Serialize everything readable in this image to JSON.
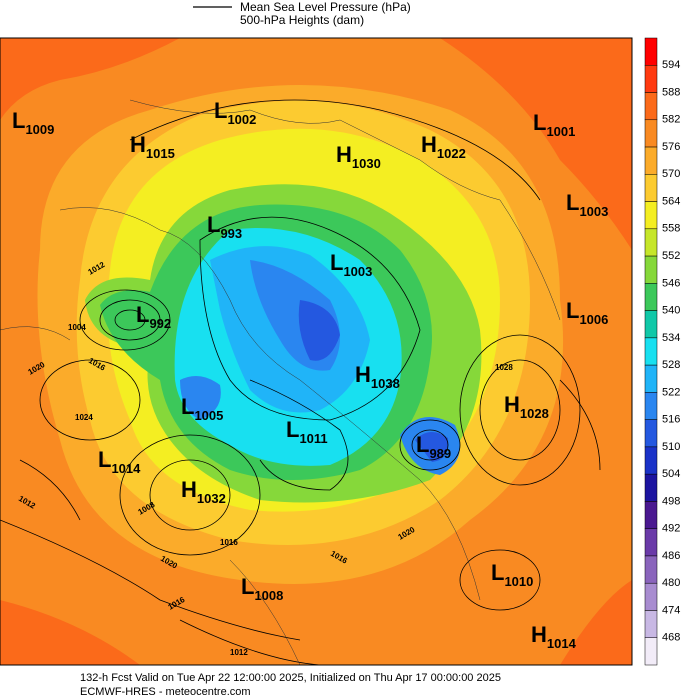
{
  "legend": {
    "lines": [
      "Mean Sea Level Pressure (hPa)",
      "500-hPa Heights (dam)"
    ]
  },
  "colorbar": {
    "labels": [
      594,
      588,
      582,
      576,
      570,
      564,
      558,
      552,
      546,
      540,
      534,
      528,
      522,
      516,
      510,
      504,
      498,
      492,
      486,
      480,
      474,
      468
    ],
    "colors": [
      "#ff0000",
      "#ff3a10",
      "#fb6a1a",
      "#f98a22",
      "#fbab2a",
      "#fccb30",
      "#f4ee22",
      "#c6e62a",
      "#86d83a",
      "#3cc85a",
      "#10c8a8",
      "#18e0f0",
      "#20b4f8",
      "#2a86f0",
      "#2458e0",
      "#1a32c8",
      "#1c14a0",
      "#4a1890",
      "#6a3aa8",
      "#8a64bc",
      "#a88cd0",
      "#c8b8e4",
      "#f2ecf8"
    ]
  },
  "centers": [
    {
      "type": "L",
      "value": "1009"
    },
    {
      "type": "L",
      "value": "1002"
    },
    {
      "type": "H",
      "value": "1015"
    },
    {
      "type": "H",
      "value": "1030"
    },
    {
      "type": "H",
      "value": "1022"
    },
    {
      "type": "L",
      "value": "1001"
    },
    {
      "type": "L",
      "value": "1003"
    },
    {
      "type": "L",
      "value": "993"
    },
    {
      "type": "L",
      "value": "1003"
    },
    {
      "type": "L",
      "value": "992"
    },
    {
      "type": "L",
      "value": "1006"
    },
    {
      "type": "H",
      "value": "1038"
    },
    {
      "type": "H",
      "value": "1028"
    },
    {
      "type": "L",
      "value": "1005"
    },
    {
      "type": "L",
      "value": "1011"
    },
    {
      "type": "L",
      "value": "989"
    },
    {
      "type": "L",
      "value": "1014"
    },
    {
      "type": "H",
      "value": "1032"
    },
    {
      "type": "L",
      "value": "1010"
    },
    {
      "type": "L",
      "value": "1008"
    },
    {
      "type": "H",
      "value": "1014"
    }
  ],
  "isobar_labels": [
    "1012",
    "1004",
    "1016",
    "1020",
    "1024",
    "1012",
    "1008",
    "1016",
    "1020",
    "1016",
    "1012",
    "1016",
    "1020",
    "1028"
  ],
  "footer": {
    "lines": [
      "132-h Fcst Valid on Tue Apr 22 12:00:00 2025, Initialized on Thu Apr 17 00:00:00 2025",
      "ECMWF-HRES  - meteocentre.com"
    ]
  }
}
